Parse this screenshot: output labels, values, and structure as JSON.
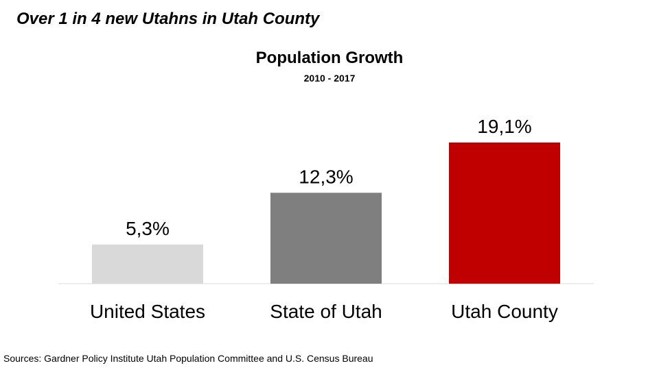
{
  "slide": {
    "title": "Over 1 in 4 new Utahns in Utah County"
  },
  "chart_data": {
    "type": "bar",
    "title": "Population Growth",
    "subtitle": "2010 - 2017",
    "categories": [
      "United States",
      "State of Utah",
      "Utah County"
    ],
    "values": [
      5.3,
      12.3,
      19.1
    ],
    "data_labels": [
      "5,3%",
      "12,3%",
      "19,1%"
    ],
    "colors": [
      "#d9d9d9",
      "#7f7f7f",
      "#c00000"
    ],
    "xlabel": "",
    "ylabel": "",
    "ylim": [
      0,
      19.1
    ],
    "grid": false,
    "legend": "none"
  },
  "source": {
    "text": "Sources:  Gardner Policy Institute Utah Population Committee and U.S. Census Bureau"
  }
}
